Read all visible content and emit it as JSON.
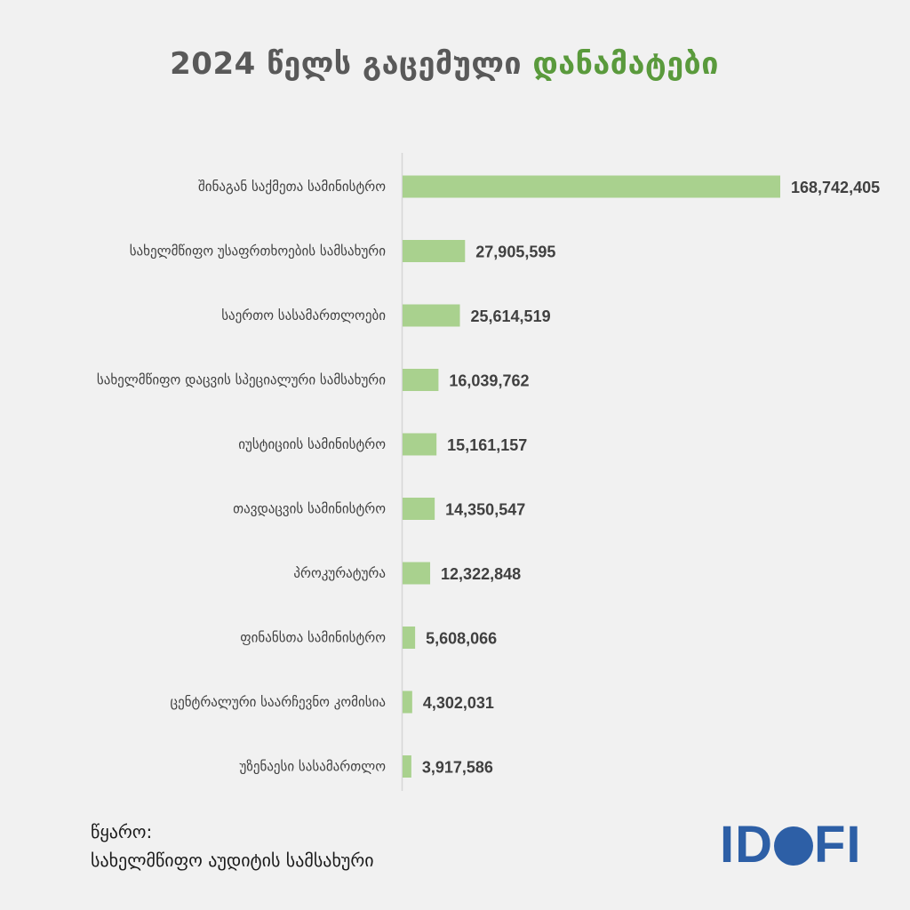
{
  "title": {
    "main": "2024 წელს გაცემული",
    "accent": "დანამატები"
  },
  "colors": {
    "bar": "#a9d18e",
    "title": "#595959",
    "accent": "#5a9a3c",
    "logo": "#2d5fa6"
  },
  "chart_data": {
    "type": "bar",
    "orientation": "horizontal",
    "title": "2024 წელს გაცემული დანამატები",
    "categories": [
      "შინაგან საქმეთა სამინისტრო",
      "სახელმწიფო უსაფრთხოების სამსახური",
      "საერთო სასამართლოები",
      "სახელმწიფო დაცვის სპეციალური სამსახური",
      "იუსტიციის სამინისტრო",
      "თავდაცვის სამინისტრო",
      "პროკურატურა",
      "ფინანსთა სამინისტრო",
      "ცენტრალური საარჩევნო კომისია",
      "უზენაესი სასამართლო"
    ],
    "values": [
      168742405,
      27905595,
      25614519,
      16039762,
      15161157,
      14350547,
      12322848,
      5608066,
      4302031,
      3917586
    ],
    "labels": [
      "168,742,405",
      "27,905,595",
      "25,614,519",
      "16,039,762",
      "15,161,157",
      "14,350,547",
      "12,322,848",
      "5,608,066",
      "4,302,031",
      "3,917,586"
    ],
    "xlim": [
      0,
      168742405
    ],
    "grid": false,
    "legend": "none"
  },
  "footer": {
    "source_label": "წყარო:",
    "source_name": "სახელმწიფო აუდიტის სამსახური",
    "logo_left": "ID",
    "logo_right": "FI"
  }
}
